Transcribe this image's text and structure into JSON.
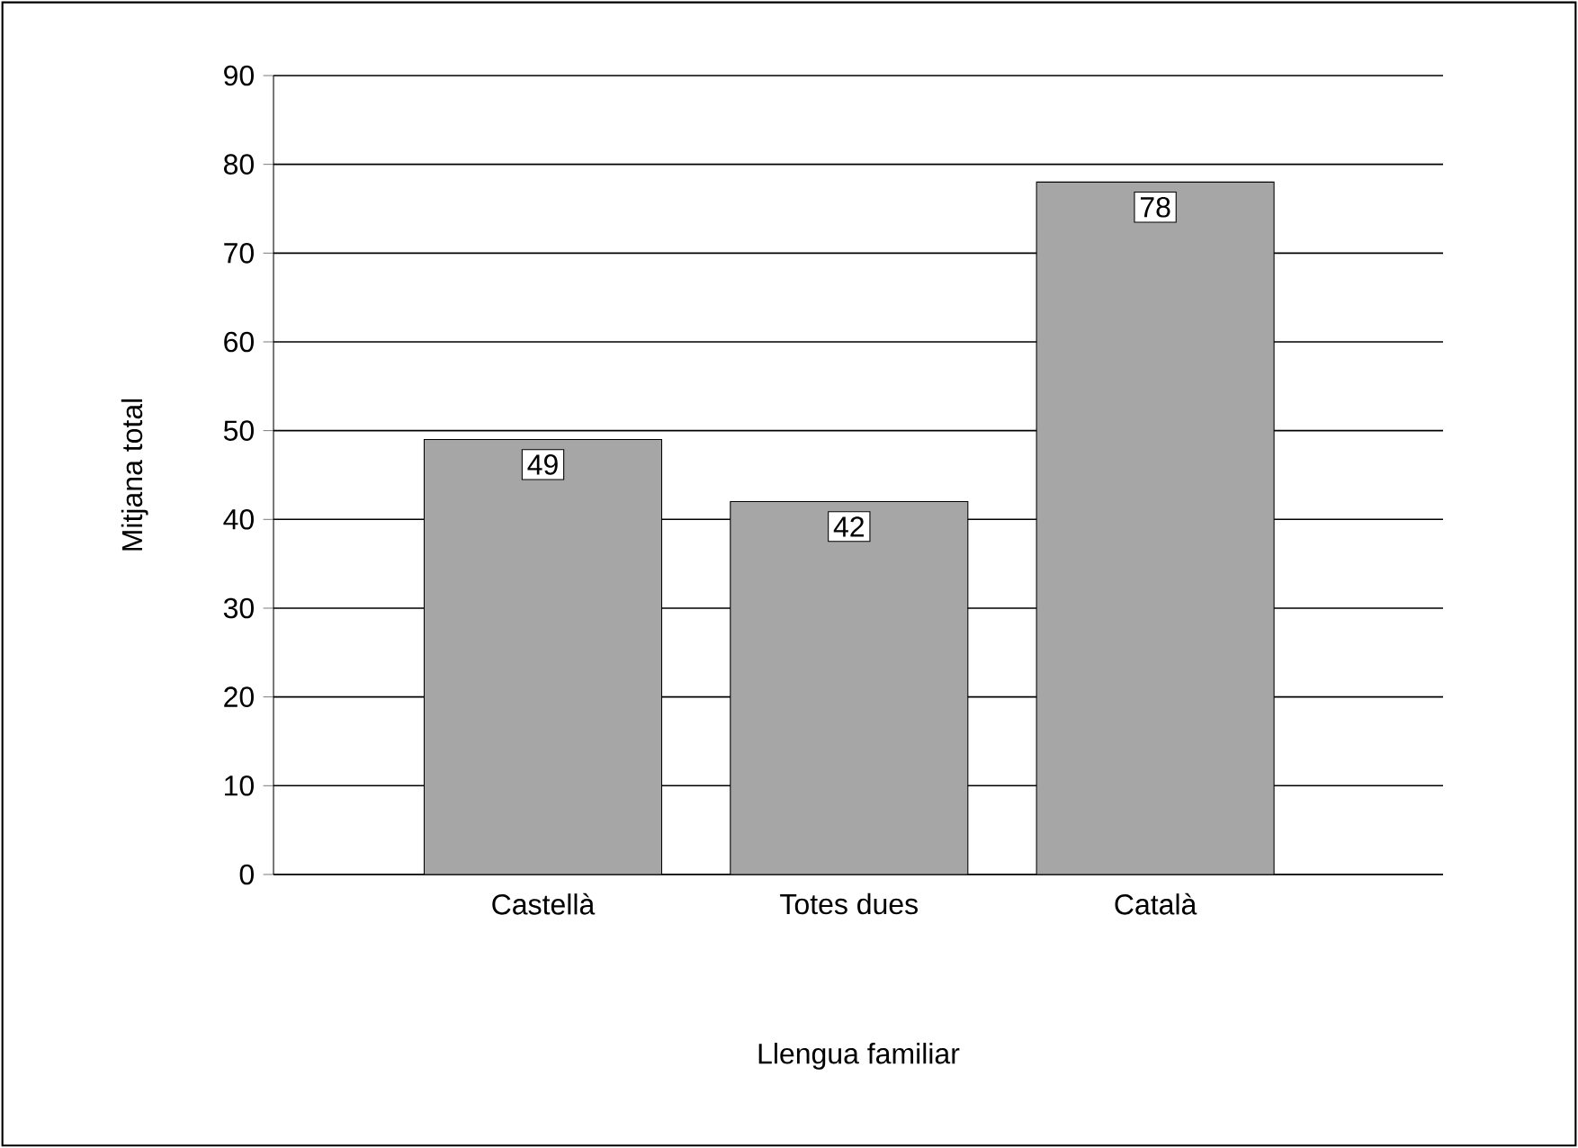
{
  "chart_data": {
    "type": "bar",
    "xlabel": "Llengua familiar",
    "ylabel": "Mitjana total",
    "categories": [
      "Castellà",
      "Totes dues",
      "Català"
    ],
    "values": [
      49,
      42,
      78
    ],
    "color": "#a6a6a6",
    "data_labels": true,
    "ylim": [
      0,
      90
    ],
    "yticks": [
      0,
      10,
      20,
      30,
      40,
      50,
      60,
      70,
      80,
      90
    ],
    "grid": "y"
  }
}
